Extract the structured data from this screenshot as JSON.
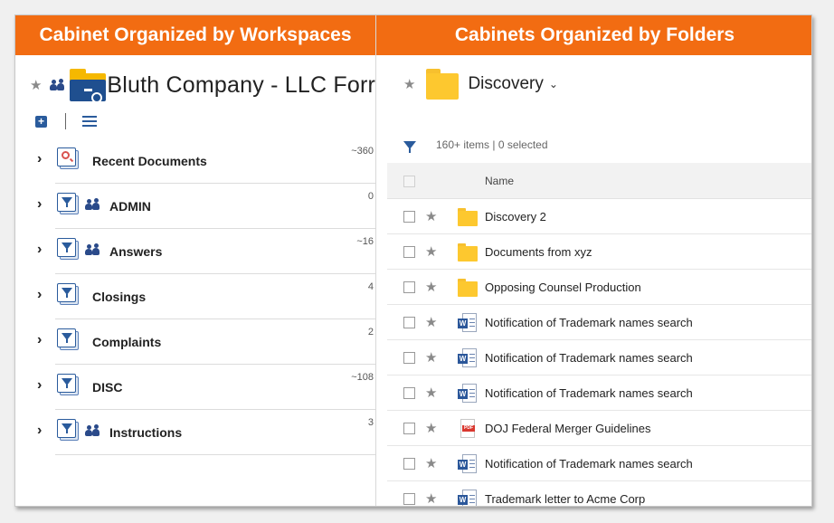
{
  "headers": {
    "left": "Cabinet Organized by Workspaces",
    "right": "Cabinets Organized by Folders"
  },
  "workspace": {
    "title": "Bluth Company - LLC Forr",
    "add_label": "+",
    "tree": [
      {
        "label": "Recent Documents",
        "count": "~360",
        "icon": "recent-search-icon",
        "group": false
      },
      {
        "label": "ADMIN",
        "count": "0",
        "icon": "filter-cabinet-icon",
        "group": true
      },
      {
        "label": "Answers",
        "count": "~16",
        "icon": "filter-cabinet-icon",
        "group": true
      },
      {
        "label": "Closings",
        "count": "4",
        "icon": "filter-cabinet-icon",
        "group": false
      },
      {
        "label": "Complaints",
        "count": "2",
        "icon": "filter-cabinet-icon",
        "group": false
      },
      {
        "label": "DISC",
        "count": "~108",
        "icon": "filter-cabinet-icon",
        "group": false
      },
      {
        "label": "Instructions",
        "count": "3",
        "icon": "filter-cabinet-icon",
        "group": true
      }
    ]
  },
  "folder_view": {
    "title": "Discovery",
    "caret": "⌄",
    "meta": "160+ items  |  0 selected",
    "column_name": "Name",
    "rows": [
      {
        "name": "Discovery 2",
        "type": "folder"
      },
      {
        "name": "Documents from xyz",
        "type": "folder"
      },
      {
        "name": "Opposing Counsel Production",
        "type": "folder"
      },
      {
        "name": "Notification of Trademark names search",
        "type": "word"
      },
      {
        "name": "Notification of Trademark names search",
        "type": "word"
      },
      {
        "name": "Notification of Trademark names search",
        "type": "word"
      },
      {
        "name": "DOJ Federal Merger Guidelines",
        "type": "pdf"
      },
      {
        "name": "Notification of Trademark names search",
        "type": "word"
      },
      {
        "name": "Trademark letter to Acme Corp",
        "type": "word"
      }
    ]
  },
  "colors": {
    "header_orange": "#f26c12",
    "accent_blue": "#2a5b9c",
    "folder_yellow": "#fdc82f"
  }
}
